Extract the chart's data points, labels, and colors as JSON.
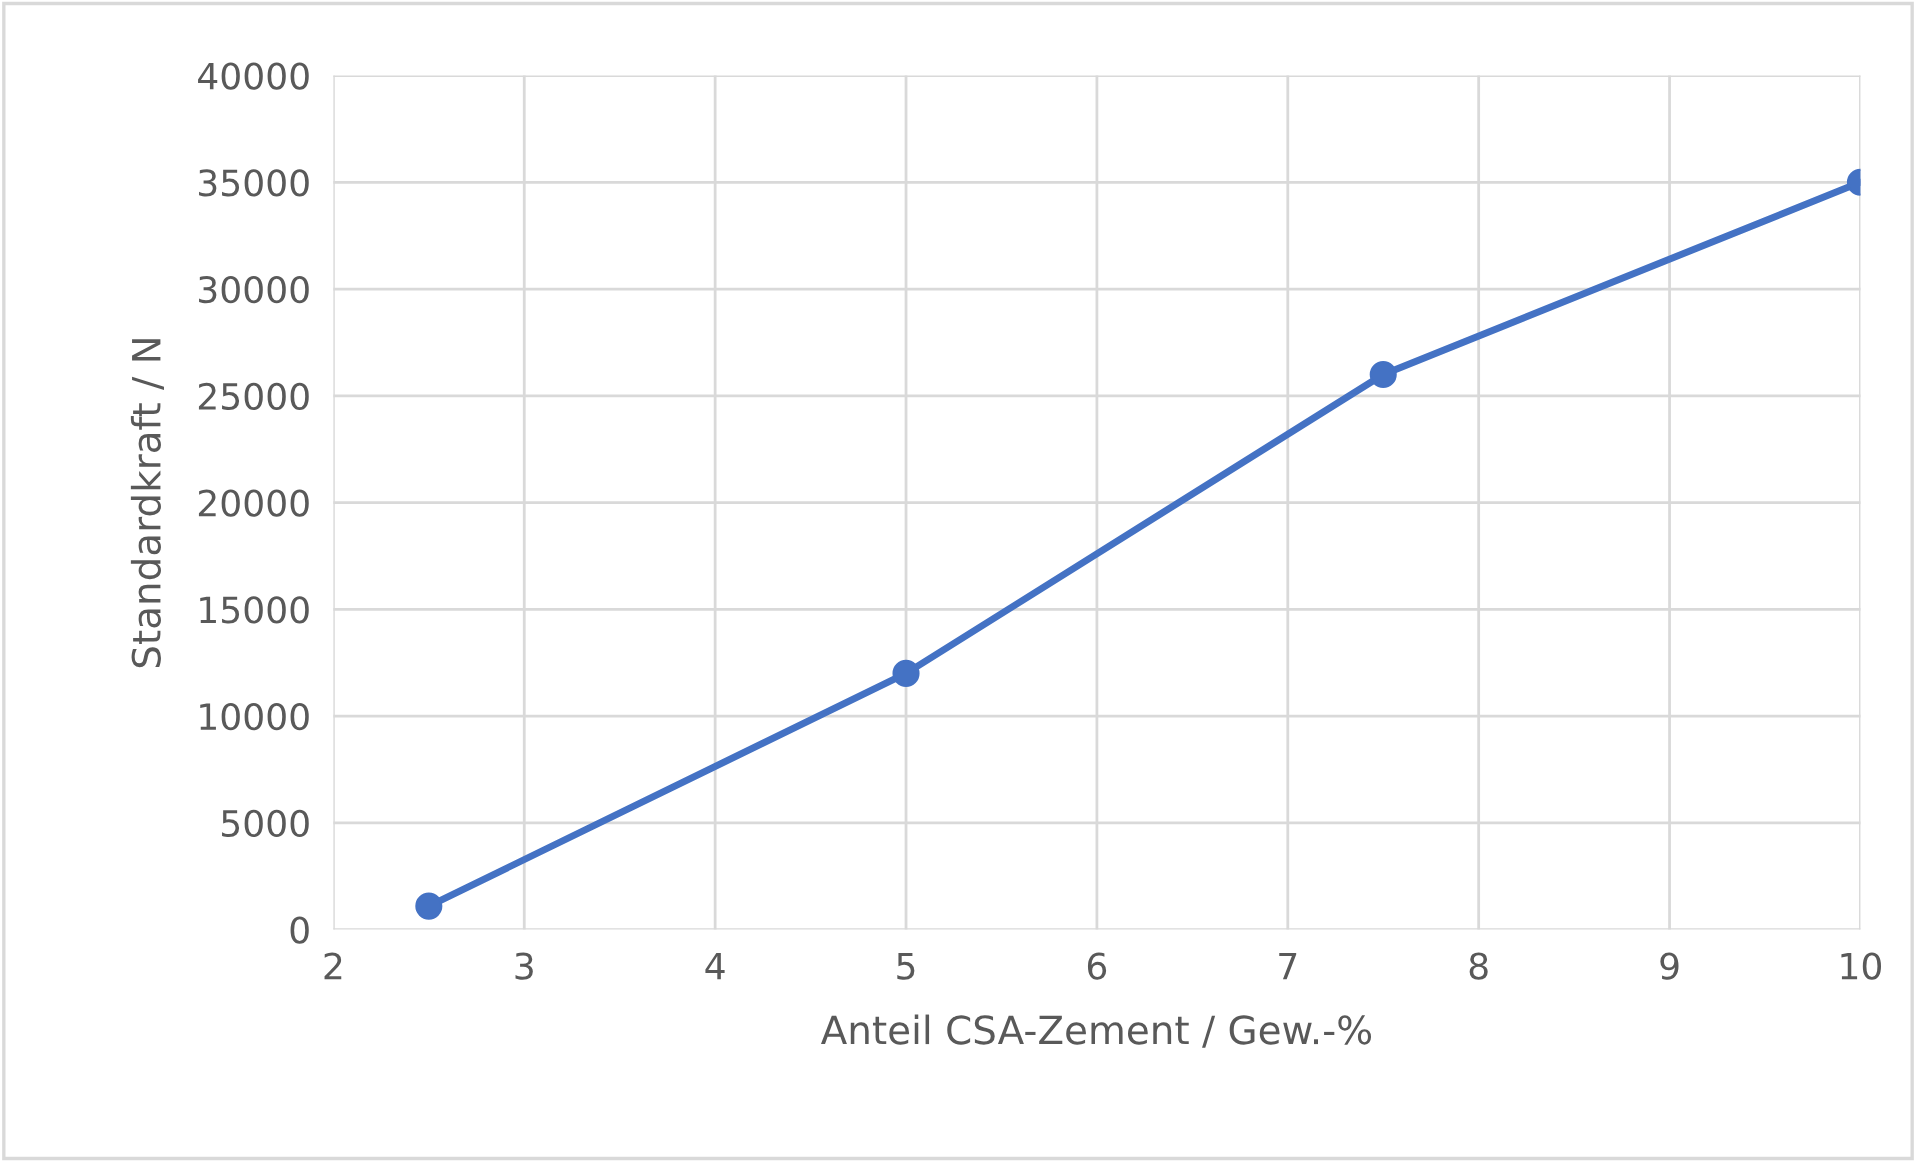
{
  "chart_data": {
    "type": "line",
    "xlabel": "Anteil CSA-Zement / Gew.-%",
    "ylabel": "Standardkraft / N",
    "x": [
      2.5,
      5,
      7.5,
      10
    ],
    "series": [
      {
        "color": "#4472c4",
        "values": [
          1100,
          12000,
          26000,
          35000
        ]
      }
    ],
    "xlim": [
      2,
      10
    ],
    "xticks": [
      2,
      3,
      4,
      5,
      6,
      7,
      8,
      9,
      10
    ],
    "ylim": [
      0,
      40000
    ],
    "yticks": [
      0,
      5000,
      10000,
      15000,
      20000,
      25000,
      30000,
      35000,
      40000
    ],
    "grid": true,
    "marker": "circle",
    "line_style": "solid"
  }
}
